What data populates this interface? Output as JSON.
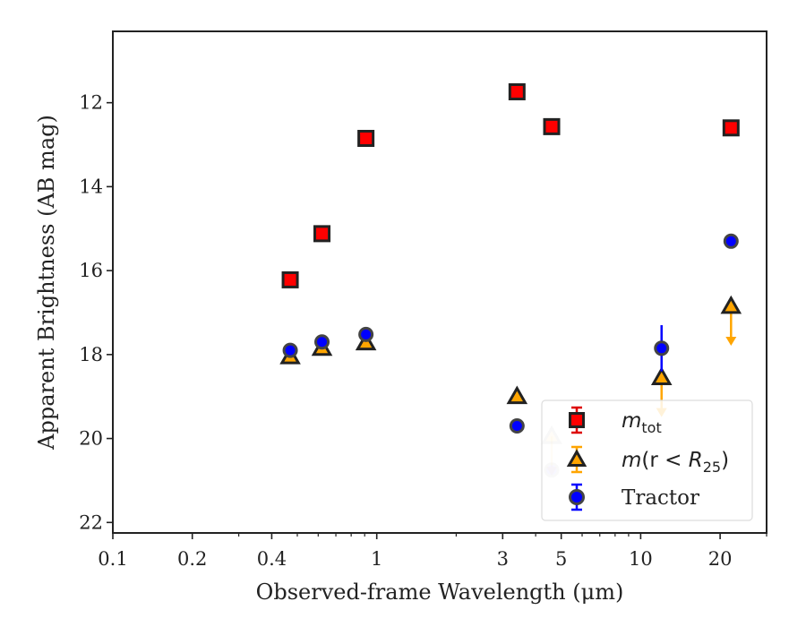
{
  "chart_data": {
    "type": "scatter",
    "xlabel": "Observed-frame Wavelength (μm)",
    "ylabel": "Apparent Brightness (AB mag)",
    "xscale": "log",
    "xlim": [
      0.1,
      30
    ],
    "ylim": [
      22.25,
      10.3
    ],
    "y_inverted": true,
    "grid": false,
    "legend_position": "lower-right",
    "x_ticks": [
      {
        "value": 0.1,
        "label": "0.1"
      },
      {
        "value": 0.2,
        "label": "0.2"
      },
      {
        "value": 0.4,
        "label": "0.4"
      },
      {
        "value": 1,
        "label": "1"
      },
      {
        "value": 3,
        "label": "3"
      },
      {
        "value": 5,
        "label": "5"
      },
      {
        "value": 10,
        "label": "10"
      },
      {
        "value": 20,
        "label": "20"
      }
    ],
    "x_minor_ticks": [
      0.3,
      0.5,
      0.6,
      0.7,
      0.8,
      0.9,
      2,
      4,
      6,
      7,
      8,
      9,
      30
    ],
    "y_ticks": [
      {
        "value": 12,
        "label": "12"
      },
      {
        "value": 14,
        "label": "14"
      },
      {
        "value": 16,
        "label": "16"
      },
      {
        "value": 18,
        "label": "18"
      },
      {
        "value": 20,
        "label": "20"
      },
      {
        "value": 22,
        "label": "22"
      }
    ],
    "series": [
      {
        "name": "m_tot",
        "marker": "square",
        "face_color": "#ff0000",
        "edge_color": "#222222",
        "error_color": "#dd0000",
        "points": [
          {
            "x": 0.47,
            "y": 16.22
          },
          {
            "x": 0.62,
            "y": 15.12
          },
          {
            "x": 0.91,
            "y": 12.85
          },
          {
            "x": 3.4,
            "y": 11.74
          },
          {
            "x": 4.6,
            "y": 12.57
          },
          {
            "x": 22,
            "y": 12.6
          }
        ]
      },
      {
        "name": "m(r < R25)",
        "marker": "triangle",
        "face_color": "#ffa500",
        "edge_color": "#222222",
        "error_color": "#ffa500",
        "points": [
          {
            "x": 0.47,
            "y": 18.05
          },
          {
            "x": 0.62,
            "y": 17.85
          },
          {
            "x": 0.91,
            "y": 17.72
          },
          {
            "x": 3.4,
            "y": 19.0
          },
          {
            "x": 4.6,
            "y": 19.95,
            "faded": true,
            "upper_limit": true
          },
          {
            "x": 12,
            "y": 18.55,
            "upper_limit": true
          },
          {
            "x": 22,
            "y": 16.85,
            "upper_limit": true
          }
        ]
      },
      {
        "name": "Tractor",
        "marker": "circle",
        "face_color": "#0000ff",
        "edge_color": "#444444",
        "error_color": "#0000ff",
        "points": [
          {
            "x": 0.47,
            "y": 17.9
          },
          {
            "x": 0.62,
            "y": 17.7
          },
          {
            "x": 0.91,
            "y": 17.52
          },
          {
            "x": 3.4,
            "y": 19.7
          },
          {
            "x": 4.6,
            "y": 20.75,
            "faded": true
          },
          {
            "x": 12,
            "y": 17.85,
            "yerr": 0.55
          },
          {
            "x": 22,
            "y": 15.3
          }
        ]
      }
    ],
    "legend": [
      {
        "series": 0,
        "base": "m",
        "sub": "tot",
        "tail": "",
        "tail_italic": "",
        "tail_sub": "",
        "close": ""
      },
      {
        "series": 1,
        "base": "m",
        "sub": "",
        "tail": "(r < ",
        "tail_italic": "R",
        "tail_sub": "25",
        "close": ")"
      },
      {
        "series": 2,
        "base": "Tractor",
        "sub": "",
        "tail": "",
        "tail_italic": "",
        "tail_sub": "",
        "close": ""
      }
    ]
  }
}
